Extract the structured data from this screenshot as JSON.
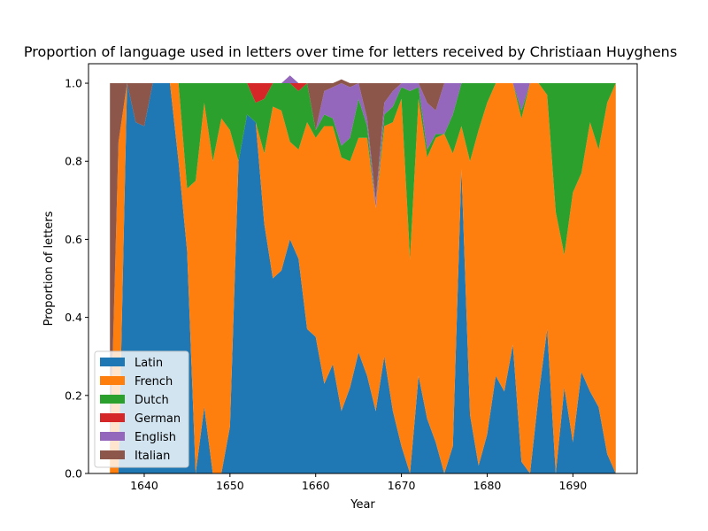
{
  "chart_data": {
    "type": "area",
    "title": "Proportion of language used in letters over time for letters received by Christiaan Huyghens",
    "xlabel": "Year",
    "ylabel": "Proportion of letters",
    "xlim": [
      1633.5,
      1697.5
    ],
    "ylim": [
      0,
      1.05
    ],
    "xticks": [
      1640,
      1650,
      1660,
      1670,
      1680,
      1690
    ],
    "yticks": [
      0.0,
      0.2,
      0.4,
      0.6,
      0.8,
      1.0
    ],
    "ytick_labels": [
      "0.0",
      "0.2",
      "0.4",
      "0.6",
      "0.8",
      "1.0"
    ],
    "grid": false,
    "stacked": true,
    "legend_position": "lower left",
    "x": [
      1636,
      1637,
      1638,
      1639,
      1640,
      1641,
      1642,
      1643,
      1644,
      1645,
      1646,
      1647,
      1648,
      1649,
      1650,
      1651,
      1652,
      1653,
      1654,
      1655,
      1656,
      1657,
      1658,
      1659,
      1660,
      1661,
      1662,
      1663,
      1664,
      1665,
      1666,
      1667,
      1668,
      1669,
      1670,
      1671,
      1672,
      1673,
      1674,
      1675,
      1676,
      1677,
      1678,
      1679,
      1680,
      1681,
      1682,
      1683,
      1684,
      1685,
      1686,
      1687,
      1688,
      1689,
      1690,
      1691,
      1692,
      1693,
      1694,
      1695
    ],
    "series": [
      {
        "name": "Latin",
        "color": "#1f77b4",
        "values": [
          0,
          0,
          1,
          0.9,
          0.89,
          1,
          1,
          1,
          0.8,
          0.57,
          0,
          0.17,
          0,
          0,
          0.12,
          0.8,
          0.92,
          0.9,
          0.64,
          0.5,
          0.52,
          0.6,
          0.55,
          0.37,
          0.35,
          0.23,
          0.28,
          0.16,
          0.22,
          0.31,
          0.25,
          0.16,
          0.3,
          0.16,
          0.07,
          0,
          0.25,
          0.14,
          0.08,
          0,
          0.07,
          0.78,
          0.15,
          0.02,
          0.1,
          0.25,
          0.21,
          0.33,
          0.03,
          0,
          0.2,
          0.37,
          0,
          0.22,
          0.08,
          0.26,
          0.21,
          0.17,
          0.05,
          0
        ]
      },
      {
        "name": "French",
        "color": "#ff7f0e",
        "values": [
          0.04,
          0.85,
          0,
          0,
          0,
          0,
          0,
          0,
          0.2,
          0.16,
          0.75,
          0.78,
          0.8,
          0.91,
          0.76,
          0,
          0,
          0,
          0.18,
          0.44,
          0.41,
          0.25,
          0.28,
          0.53,
          0.51,
          0.66,
          0.61,
          0.65,
          0.58,
          0.55,
          0.61,
          0.52,
          0.59,
          0.74,
          0.89,
          0.55,
          0.71,
          0.67,
          0.78,
          0.87,
          0.75,
          0.11,
          0.65,
          0.86,
          0.85,
          0.75,
          0.79,
          0.67,
          0.88,
          1,
          0.8,
          0.6,
          0.67,
          0.34,
          0.64,
          0.51,
          0.69,
          0.66,
          0.9,
          1
        ]
      },
      {
        "name": "Dutch",
        "color": "#2ca02c",
        "values": [
          0,
          0,
          0,
          0,
          0,
          0,
          0,
          0,
          0,
          0.27,
          0.25,
          0.05,
          0.2,
          0.09,
          0.12,
          0.2,
          0.08,
          0.05,
          0.14,
          0.06,
          0.07,
          0.15,
          0.15,
          0.1,
          0.02,
          0.03,
          0.02,
          0.03,
          0.06,
          0.1,
          0.03,
          0,
          0.03,
          0.04,
          0.03,
          0.43,
          0.03,
          0.02,
          0.01,
          0,
          0.1,
          0.11,
          0.2,
          0.12,
          0.05,
          0,
          0,
          0,
          0.02,
          0,
          0,
          0.03,
          0.33,
          0.44,
          0.28,
          0.23,
          0.1,
          0.17,
          0.05,
          0
        ]
      },
      {
        "name": "German",
        "color": "#d62728",
        "values": [
          0,
          0,
          0,
          0,
          0,
          0,
          0,
          0,
          0,
          0,
          0,
          0,
          0,
          0,
          0,
          0,
          0,
          0.05,
          0.04,
          0,
          0,
          0,
          0.02,
          0,
          0,
          0,
          0,
          0,
          0,
          0,
          0,
          0,
          0,
          0,
          0,
          0,
          0,
          0,
          0,
          0,
          0,
          0,
          0,
          0,
          0,
          0,
          0,
          0,
          0,
          0,
          0,
          0,
          0,
          0,
          0,
          0,
          0,
          0,
          0,
          0
        ]
      },
      {
        "name": "English",
        "color": "#9467bd",
        "values": [
          0,
          0,
          0,
          0,
          0,
          0,
          0,
          0,
          0,
          0,
          0,
          0,
          0,
          0,
          0,
          0,
          0,
          0,
          0,
          0,
          0,
          0.02,
          0,
          0,
          0,
          0.06,
          0.08,
          0.16,
          0.13,
          0.04,
          0.02,
          0.02,
          0.03,
          0.04,
          0.01,
          0.02,
          0.01,
          0.12,
          0.06,
          0.13,
          0.08,
          0,
          0,
          0,
          0,
          0,
          0,
          0,
          0.07,
          0,
          0,
          0,
          0,
          0,
          0,
          0,
          0,
          0,
          0,
          0
        ]
      },
      {
        "name": "Italian",
        "color": "#8c564b",
        "values": [
          0.96,
          0.15,
          0,
          0.1,
          0.11,
          0,
          0,
          0,
          0,
          0,
          0,
          0,
          0,
          0,
          0,
          0,
          0,
          0,
          0,
          0,
          0,
          0,
          0,
          0,
          0.12,
          0.02,
          0.01,
          0.01,
          0.01,
          0,
          0.09,
          0.3,
          0.05,
          0.02,
          0,
          0,
          0,
          0.05,
          0.07,
          0,
          0,
          0,
          0,
          0,
          0,
          0,
          0,
          0,
          0,
          0,
          0,
          0,
          0,
          0,
          0,
          0,
          0,
          0,
          0,
          0
        ]
      }
    ]
  }
}
